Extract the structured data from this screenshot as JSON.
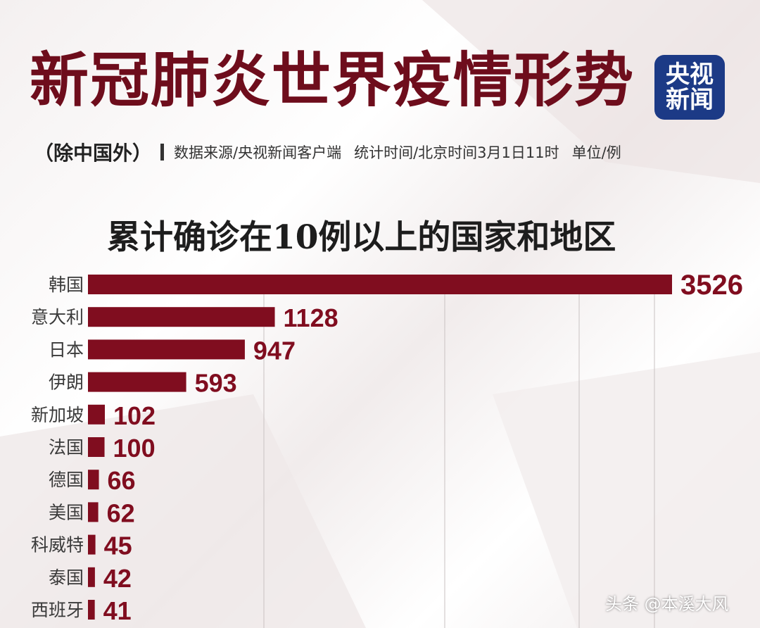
{
  "title": "新冠肺炎世界疫情形势",
  "logo": {
    "line1": "央视",
    "line2": "新闻"
  },
  "subtitle": {
    "region_note": "（除中国外）",
    "source": "数据来源/央视新闻客户端",
    "time": "统计时间/北京时间3月1日11时",
    "unit": "单位/例"
  },
  "colors": {
    "bar": "#800d1f",
    "title": "#6e0d1c",
    "logo_bg": "#1c3a86"
  },
  "chart_data": {
    "type": "bar",
    "orientation": "horizontal",
    "title": "累计确诊在10例以上的国家和地区",
    "categories": [
      "韩国",
      "意大利",
      "日本",
      "伊朗",
      "新加坡",
      "法国",
      "德国",
      "美国",
      "科威特",
      "泰国",
      "西班牙"
    ],
    "values": [
      3526,
      1128,
      947,
      593,
      102,
      100,
      66,
      62,
      45,
      42,
      41
    ],
    "xlim": [
      0,
      3526
    ],
    "grid": true,
    "legend": "none"
  },
  "watermark": "头条 @本溪大风"
}
